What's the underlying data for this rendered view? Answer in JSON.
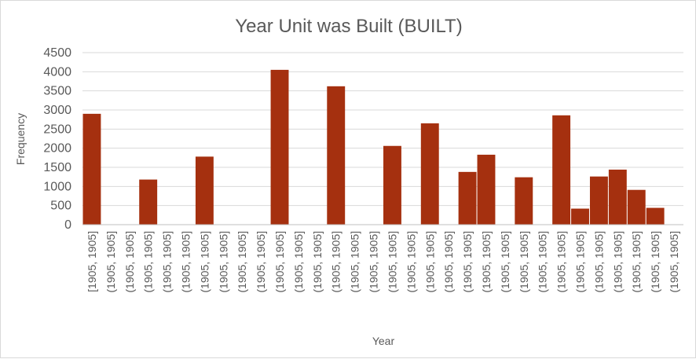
{
  "chart_data": {
    "type": "bar",
    "title": "Year Unit was Built (BUILT)",
    "xlabel": "Year",
    "ylabel": "Frequency",
    "ylim": [
      0,
      4500
    ],
    "yticks": [
      "0",
      "500",
      "1000",
      "1500",
      "2000",
      "2500",
      "3000",
      "3500",
      "4000",
      "4500"
    ],
    "grid": true,
    "legend": "none",
    "bar_color": "#A5300F",
    "categories": [
      "[1905, 1905]",
      "(1905, 1905]",
      "(1905, 1905]",
      "(1905, 1905]",
      "(1905, 1905]",
      "(1905, 1905]",
      "(1905, 1905]",
      "(1905, 1905]",
      "(1905, 1905]",
      "(1905, 1905]",
      "(1905, 1905]",
      "(1905, 1905]",
      "(1905, 1905]",
      "(1905, 1905]",
      "(1905, 1905]",
      "(1905, 1905]",
      "(1905, 1905]",
      "(1905, 1905]",
      "(1905, 1905]",
      "(1905, 1905]",
      "(1905, 1905]",
      "(1905, 1905]",
      "(1905, 1905]",
      "(1905, 1905]",
      "(1905, 1905]",
      "(1905, 1905]",
      "(1905, 1905]",
      "(1905, 1905]",
      "(1905, 1905]",
      "(1905, 1905]",
      "(1905, 1905]",
      "(1905, 1905]"
    ],
    "values": [
      2900,
      0,
      0,
      1180,
      0,
      0,
      1780,
      0,
      0,
      0,
      4050,
      0,
      0,
      3620,
      0,
      0,
      2060,
      0,
      2650,
      0,
      1380,
      1830,
      0,
      1240,
      0,
      2860,
      420,
      1260,
      1440,
      910,
      440,
      0
    ]
  }
}
